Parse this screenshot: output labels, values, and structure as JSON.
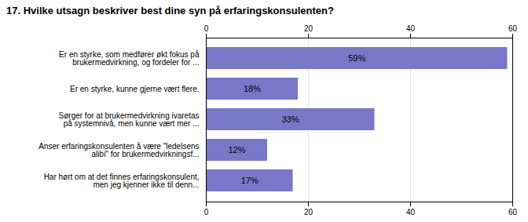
{
  "chart_data": {
    "type": "bar",
    "orientation": "horizontal",
    "title": "17. Hvilke utsagn beskriver best dine syn på erfaringskonsulenten?",
    "categories": [
      "Er en styrke, som medfører økt fokus på\nbrukermedvirkning, og fordeler for ...",
      "Er en styrke, kunne gjerne vært flere.",
      "Sørger for at brukermedvirkning ivaretas\npå systemnivå, men kunne vært mer ...",
      "Anser erfaringskonsulenten å være \"ledelsens\nalibi\" for brukermedvirkningsf...",
      "Har hørt om at det finnes erfaringskonsulent,\nmen jeg kjenner ikke til denn..."
    ],
    "values": [
      59,
      18,
      33,
      12,
      17
    ],
    "value_labels": [
      "59%",
      "18%",
      "33%",
      "12%",
      "17%"
    ],
    "data_labels": true,
    "color": "#7878C8",
    "xlim": [
      0,
      60
    ],
    "xticks": [
      0,
      20,
      40,
      60
    ],
    "grid": true
  }
}
